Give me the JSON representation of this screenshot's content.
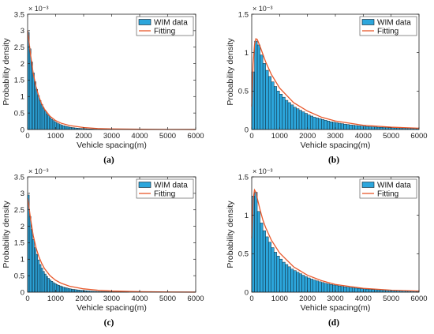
{
  "colors": {
    "bar": "#2ca6dc",
    "bar_edge": "#0a1a26",
    "fit": "#e8582b",
    "axis": "#222222"
  },
  "chart_data": [
    {
      "type": "bar",
      "caption": "(a)",
      "xlabel": "Vehicle spacing(m)",
      "ylabel": "Probability density",
      "xlim": [
        0,
        6000
      ],
      "ylim": [
        0,
        3.5
      ],
      "y_multiplier": "× 10⁻³",
      "xticks": [
        0,
        1000,
        2000,
        3000,
        4000,
        5000,
        6000
      ],
      "yticks": [
        0,
        0.5,
        1,
        1.5,
        2,
        2.5,
        3,
        3.5
      ],
      "legend": {
        "position": "top-right",
        "entries": [
          "WIM data",
          "Fitting"
        ]
      },
      "histogram": {
        "bin_width": 60,
        "values": [
          2.95,
          2.45,
          2.05,
          1.72,
          1.45,
          1.22,
          1.03,
          0.88,
          0.76,
          0.65,
          0.56,
          0.48,
          0.42,
          0.36,
          0.31,
          0.27,
          0.23,
          0.2,
          0.175,
          0.15,
          0.13,
          0.115,
          0.1,
          0.088,
          0.077,
          0.068,
          0.06,
          0.053,
          0.047,
          0.042,
          0.037,
          0.033,
          0.03,
          0.027,
          0.024,
          0.021,
          0.019,
          0.017,
          0.015,
          0.013,
          0.012,
          0.011,
          0.01,
          0.009,
          0.008,
          0.007,
          0.006,
          0.005,
          0.005,
          0.004
        ]
      },
      "fitting": {
        "x": [
          0,
          40,
          100,
          200,
          300,
          400,
          500,
          600,
          800,
          1000,
          1200,
          1500,
          2000,
          2500,
          3000,
          4000,
          5000,
          6000
        ],
        "y": [
          3.0,
          2.75,
          2.3,
          1.7,
          1.3,
          1.0,
          0.78,
          0.62,
          0.4,
          0.27,
          0.19,
          0.12,
          0.06,
          0.03,
          0.018,
          0.007,
          0.003,
          0.001
        ]
      }
    },
    {
      "type": "bar",
      "caption": "(b)",
      "xlabel": "Vehicle spacing(m)",
      "ylabel": "Probability density",
      "xlim": [
        0,
        6000
      ],
      "ylim": [
        0,
        1.5
      ],
      "y_multiplier": "× 10⁻³",
      "xticks": [
        0,
        1000,
        2000,
        3000,
        4000,
        5000,
        6000
      ],
      "yticks": [
        0,
        0.5,
        1,
        1.5
      ],
      "legend": {
        "position": "top-right",
        "entries": [
          "WIM data",
          "Fitting"
        ]
      },
      "histogram": {
        "bin_width": 100,
        "values": [
          0.75,
          1.15,
          1.1,
          0.97,
          0.86,
          0.77,
          0.69,
          0.62,
          0.56,
          0.5,
          0.46,
          0.42,
          0.38,
          0.35,
          0.32,
          0.29,
          0.27,
          0.25,
          0.23,
          0.21,
          0.19,
          0.175,
          0.16,
          0.15,
          0.14,
          0.13,
          0.12,
          0.11,
          0.1,
          0.095,
          0.088,
          0.082,
          0.076,
          0.07,
          0.065,
          0.06,
          0.056,
          0.052,
          0.048,
          0.045,
          0.042,
          0.039,
          0.036,
          0.034,
          0.032,
          0.03,
          0.028,
          0.026,
          0.025,
          0.023,
          0.022,
          0.021,
          0.02,
          0.019,
          0.018,
          0.017,
          0.016,
          0.015,
          0.015,
          0.014
        ]
      },
      "fitting": {
        "x": [
          0,
          50,
          100,
          150,
          200,
          300,
          400,
          500,
          700,
          1000,
          1500,
          2000,
          2500,
          3000,
          4000,
          5000,
          6000
        ],
        "y": [
          0.3,
          0.85,
          1.1,
          1.18,
          1.17,
          1.08,
          0.98,
          0.88,
          0.72,
          0.54,
          0.35,
          0.24,
          0.16,
          0.11,
          0.055,
          0.03,
          0.017
        ]
      }
    },
    {
      "type": "bar",
      "caption": "(c)",
      "xlabel": "Vehicle spacing(m)",
      "ylabel": "Probability density",
      "xlim": [
        0,
        6000
      ],
      "ylim": [
        0,
        3.5
      ],
      "y_multiplier": "× 10⁻³",
      "xticks": [
        0,
        1000,
        2000,
        3000,
        4000,
        5000,
        6000
      ],
      "yticks": [
        0,
        0.5,
        1,
        1.5,
        2,
        2.5,
        3,
        3.5
      ],
      "legend": {
        "position": "top-right",
        "entries": [
          "WIM data",
          "Fitting"
        ]
      },
      "histogram": {
        "bin_width": 60,
        "values": [
          2.95,
          2.3,
          1.9,
          1.6,
          1.35,
          1.15,
          0.98,
          0.84,
          0.73,
          0.63,
          0.55,
          0.48,
          0.42,
          0.37,
          0.33,
          0.29,
          0.26,
          0.23,
          0.21,
          0.19,
          0.17,
          0.15,
          0.14,
          0.125,
          0.11,
          0.1,
          0.092,
          0.084,
          0.077,
          0.07,
          0.064,
          0.058,
          0.053,
          0.048,
          0.044,
          0.04,
          0.036,
          0.033,
          0.03,
          0.027,
          0.025,
          0.023,
          0.021,
          0.019,
          0.017,
          0.016,
          0.015,
          0.014,
          0.013,
          0.012,
          0.011,
          0.01,
          0.009,
          0.009,
          0.008,
          0.008,
          0.007,
          0.007,
          0.006,
          0.006
        ]
      },
      "fitting": {
        "x": [
          0,
          40,
          100,
          200,
          300,
          400,
          500,
          600,
          800,
          1000,
          1200,
          1500,
          2000,
          2500,
          3000,
          4000,
          5000,
          6000
        ],
        "y": [
          2.85,
          2.65,
          2.25,
          1.72,
          1.35,
          1.08,
          0.88,
          0.72,
          0.5,
          0.36,
          0.27,
          0.18,
          0.1,
          0.06,
          0.035,
          0.013,
          0.005,
          0.002
        ]
      }
    },
    {
      "type": "bar",
      "caption": "(d)",
      "xlabel": "Vehicle spacing(m)",
      "ylabel": "Probability density",
      "xlim": [
        0,
        6000
      ],
      "ylim": [
        0,
        1.5
      ],
      "y_multiplier": "× 10⁻³",
      "xticks": [
        0,
        1000,
        2000,
        3000,
        4000,
        5000,
        6000
      ],
      "yticks": [
        0,
        0.5,
        1,
        1.5
      ],
      "legend": {
        "position": "top-right",
        "entries": [
          "WIM data",
          "Fitting"
        ]
      },
      "histogram": {
        "bin_width": 100,
        "values": [
          1.25,
          1.3,
          1.05,
          0.9,
          0.8,
          0.72,
          0.65,
          0.58,
          0.52,
          0.47,
          0.43,
          0.39,
          0.36,
          0.33,
          0.3,
          0.28,
          0.26,
          0.24,
          0.22,
          0.2,
          0.185,
          0.17,
          0.158,
          0.146,
          0.135,
          0.125,
          0.116,
          0.108,
          0.1,
          0.093,
          0.087,
          0.081,
          0.075,
          0.07,
          0.065,
          0.06,
          0.056,
          0.052,
          0.048,
          0.045,
          0.042,
          0.039,
          0.036,
          0.034,
          0.032,
          0.03,
          0.028,
          0.026,
          0.025,
          0.023,
          0.022,
          0.021,
          0.02,
          0.019,
          0.018,
          0.017,
          0.016,
          0.015,
          0.015,
          0.014
        ]
      },
      "fitting": {
        "x": [
          0,
          50,
          100,
          150,
          200,
          300,
          400,
          500,
          700,
          1000,
          1500,
          2000,
          2500,
          3000,
          4000,
          5000,
          6000
        ],
        "y": [
          0.7,
          1.2,
          1.33,
          1.3,
          1.22,
          1.07,
          0.94,
          0.84,
          0.68,
          0.51,
          0.33,
          0.22,
          0.15,
          0.1,
          0.05,
          0.026,
          0.014
        ]
      }
    }
  ]
}
